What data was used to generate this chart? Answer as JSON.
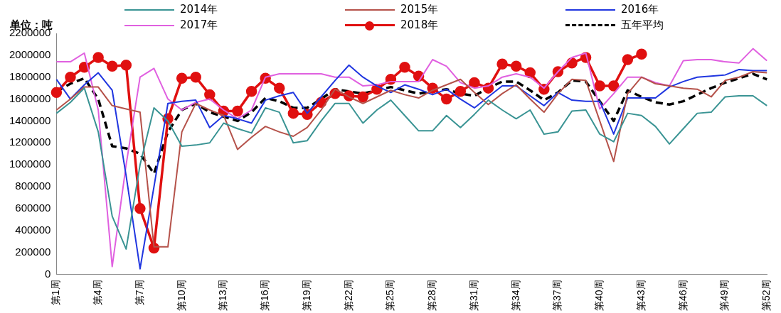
{
  "chart_data": {
    "type": "line",
    "ylabel": "单位：吨",
    "categories": [
      "第1周",
      null,
      null,
      "第4周",
      null,
      null,
      "第7周",
      null,
      null,
      "第10周",
      null,
      null,
      "第13周",
      null,
      null,
      "第16周",
      null,
      null,
      "第19周",
      null,
      null,
      "第22周",
      null,
      null,
      "第25周",
      null,
      null,
      "第28周",
      null,
      null,
      "第31周",
      null,
      null,
      "第34周",
      null,
      null,
      "第37周",
      null,
      null,
      "第40周",
      null,
      null,
      "第43周",
      null,
      null,
      "第46周",
      null,
      null,
      "第49周",
      null,
      null,
      "第52周"
    ],
    "series": [
      {
        "name": "2014年",
        "color": "#3a9494",
        "values": [
          1470000,
          1570000,
          1700000,
          1300000,
          530000,
          230000,
          1000000,
          1520000,
          1400000,
          1170000,
          1180000,
          1200000,
          1380000,
          1330000,
          1290000,
          1520000,
          1480000,
          1200000,
          1220000,
          1400000,
          1560000,
          1560000,
          1380000,
          1500000,
          1590000,
          1450000,
          1310000,
          1310000,
          1450000,
          1340000,
          1460000,
          1590000,
          1500000,
          1420000,
          1500000,
          1280000,
          1300000,
          1490000,
          1500000,
          1280000,
          1210000,
          1470000,
          1450000,
          1350000,
          1190000,
          1330000,
          1470000,
          1480000,
          1620000,
          1630000,
          1630000,
          1540000
        ]
      },
      {
        "name": "2015年",
        "color": "#b5524a",
        "values": [
          1500000,
          1600000,
          1710000,
          1710000,
          1540000,
          1510000,
          1480000,
          250000,
          250000,
          1300000,
          1560000,
          1500000,
          1450000,
          1140000,
          1250000,
          1350000,
          1300000,
          1260000,
          1340000,
          1500000,
          1690000,
          1620000,
          1560000,
          1620000,
          1680000,
          1640000,
          1610000,
          1680000,
          1730000,
          1780000,
          1660000,
          1550000,
          1650000,
          1730000,
          1600000,
          1480000,
          1650000,
          1780000,
          1770000,
          1400000,
          1030000,
          1650000,
          1800000,
          1740000,
          1720000,
          1700000,
          1690000,
          1620000,
          1770000,
          1800000,
          1850000,
          1840000
        ]
      },
      {
        "name": "2016年",
        "color": "#2036e0",
        "values": [
          1780000,
          1600000,
          1730000,
          1840000,
          1680000,
          900000,
          50000,
          800000,
          1560000,
          1580000,
          1590000,
          1340000,
          1450000,
          1420000,
          1380000,
          1590000,
          1630000,
          1660000,
          1470000,
          1620000,
          1770000,
          1910000,
          1800000,
          1720000,
          1660000,
          1730000,
          1690000,
          1640000,
          1690000,
          1600000,
          1520000,
          1620000,
          1720000,
          1720000,
          1630000,
          1540000,
          1660000,
          1590000,
          1580000,
          1580000,
          1280000,
          1610000,
          1610000,
          1610000,
          1710000,
          1760000,
          1800000,
          1810000,
          1820000,
          1870000,
          1860000,
          1860000
        ]
      },
      {
        "name": "2017年",
        "color": "#e060e0",
        "values": [
          1940000,
          1940000,
          2020000,
          1500000,
          70000,
          1000000,
          1800000,
          1880000,
          1600000,
          1500000,
          1570000,
          1600000,
          1500000,
          1420000,
          1500000,
          1800000,
          1830000,
          1830000,
          1830000,
          1830000,
          1800000,
          1800000,
          1720000,
          1730000,
          1760000,
          1760000,
          1760000,
          1960000,
          1900000,
          1750000,
          1700000,
          1720000,
          1800000,
          1830000,
          1800000,
          1700000,
          1850000,
          1980000,
          2020000,
          1510000,
          1650000,
          1800000,
          1800000,
          1750000,
          1720000,
          1950000,
          1960000,
          1960000,
          1940000,
          1930000,
          2060000,
          1950000
        ]
      },
      {
        "name": "2018年",
        "color": "#e01010",
        "marker": "circle",
        "values": [
          1660000,
          1800000,
          1890000,
          1980000,
          1900000,
          1910000,
          600000,
          240000,
          1420000,
          1790000,
          1800000,
          1640000,
          1490000,
          1490000,
          1670000,
          1790000,
          1700000,
          1470000,
          1460000,
          1570000,
          1650000,
          1630000,
          1620000,
          1690000,
          1780000,
          1890000,
          1810000,
          1700000,
          1600000,
          1670000,
          1750000,
          1700000,
          1920000,
          1900000,
          1840000,
          1690000,
          1850000,
          1930000,
          1980000,
          1720000,
          1720000,
          1960000,
          2010000,
          null,
          null,
          null,
          null,
          null,
          null,
          null,
          null,
          null
        ]
      },
      {
        "name": "五年平均",
        "color": "#000000",
        "line_style": "dashed",
        "values": [
          1670000,
          1740000,
          1790000,
          1600000,
          1170000,
          1150000,
          1100000,
          920000,
          1300000,
          1500000,
          1560000,
          1480000,
          1440000,
          1400000,
          1480000,
          1610000,
          1580000,
          1520000,
          1520000,
          1600000,
          1690000,
          1670000,
          1650000,
          1680000,
          1710000,
          1680000,
          1650000,
          1670000,
          1690000,
          1650000,
          1630000,
          1700000,
          1760000,
          1760000,
          1680000,
          1590000,
          1660000,
          1770000,
          1760000,
          1580000,
          1400000,
          1680000,
          1620000,
          1570000,
          1550000,
          1580000,
          1640000,
          1700000,
          1750000,
          1790000,
          1830000,
          1780000
        ]
      }
    ],
    "ylim": [
      0,
      2200000
    ],
    "yticks": [
      0,
      200000,
      400000,
      600000,
      800000,
      1000000,
      1200000,
      1400000,
      1600000,
      1800000,
      2000000,
      2200000
    ],
    "grid": false,
    "legend": "top"
  }
}
